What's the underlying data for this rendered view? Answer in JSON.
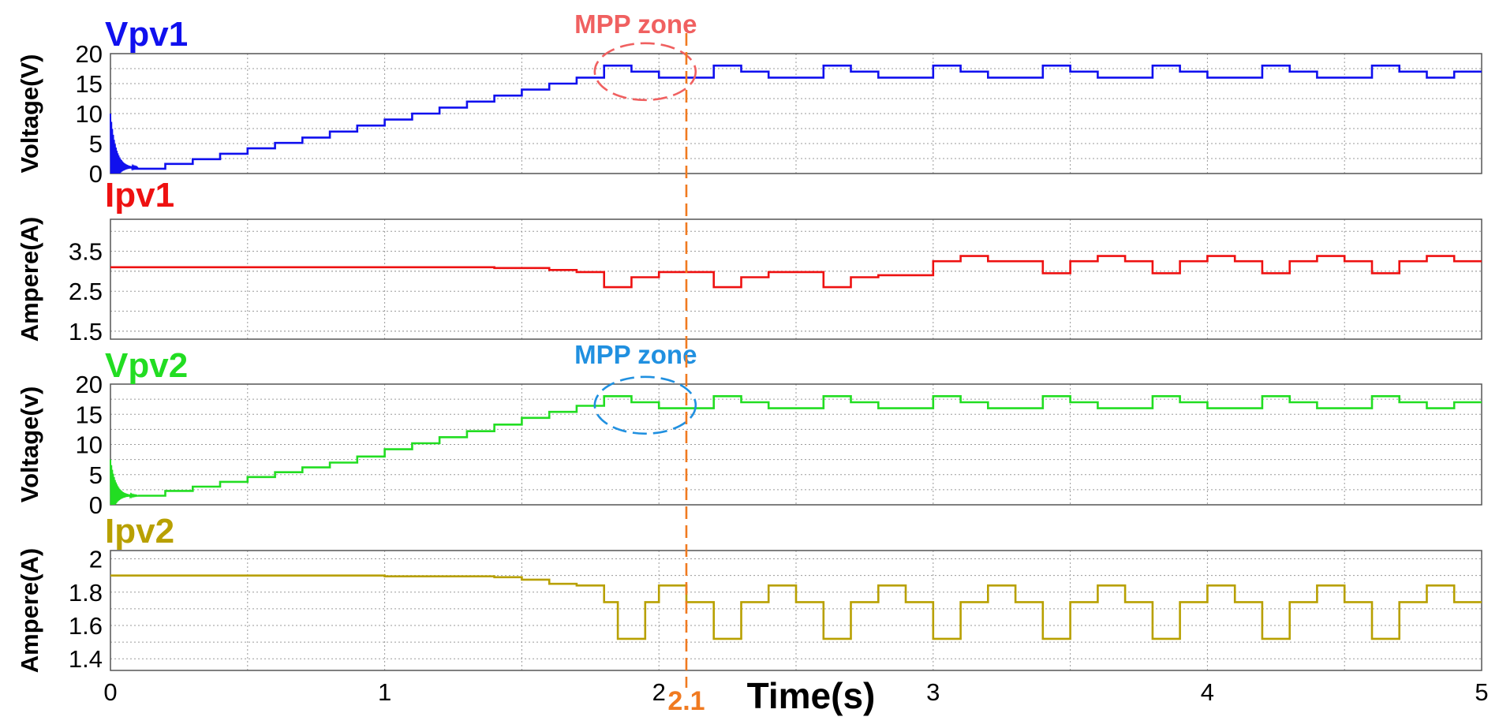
{
  "figure": {
    "x_axis_label": "Time(s)",
    "marker_value_label": "2.1",
    "zone_labels": [
      "MPP zone",
      "MPP zone"
    ],
    "colors": {
      "vpv1": "#1010ee",
      "ipv1": "#ee1111",
      "vpv2": "#22dd22",
      "ipv2": "#b8a000",
      "marker": "#f07a20",
      "zone1": "#f06060",
      "zone2": "#2090e0",
      "grid": "#9a9a9a",
      "axis": "#555555"
    }
  },
  "chart_data": [
    {
      "type": "line",
      "title": "Vpv1",
      "ylabel": "Voltage(V)",
      "xlabel": "",
      "xlim": [
        0,
        5
      ],
      "ylim": [
        0,
        20
      ],
      "yticks": [
        0,
        5,
        10,
        15,
        20
      ],
      "xticks": [
        0,
        1,
        2,
        3,
        4,
        5
      ],
      "grid": true,
      "annotation": {
        "text": "MPP zone",
        "center_x": 1.95,
        "center_y": 17
      },
      "marker_x": 2.1,
      "initial_transient": {
        "from_x": 0,
        "to_x": 0.1,
        "peak": 10,
        "settle": 1
      },
      "series": [
        {
          "name": "Vpv1",
          "steps": [
            [
              0.08,
              0.8
            ],
            [
              0.2,
              1.6
            ],
            [
              0.3,
              2.4
            ],
            [
              0.4,
              3.3
            ],
            [
              0.5,
              4.2
            ],
            [
              0.6,
              5.1
            ],
            [
              0.7,
              6.0
            ],
            [
              0.8,
              7.0
            ],
            [
              0.9,
              8.0
            ],
            [
              1.0,
              9.0
            ],
            [
              1.1,
              10.0
            ],
            [
              1.2,
              11.0
            ],
            [
              1.3,
              12.0
            ],
            [
              1.4,
              13.0
            ],
            [
              1.5,
              14.0
            ],
            [
              1.6,
              15.0
            ],
            [
              1.7,
              16.0
            ],
            [
              1.8,
              18.0
            ],
            [
              1.9,
              17.0
            ],
            [
              2.0,
              16.0
            ],
            [
              2.2,
              18.0
            ],
            [
              2.3,
              17.0
            ],
            [
              2.4,
              16.0
            ],
            [
              2.6,
              18.0
            ],
            [
              2.7,
              17.0
            ],
            [
              2.8,
              16.0
            ],
            [
              3.0,
              18.0
            ],
            [
              3.1,
              17.0
            ],
            [
              3.2,
              16.0
            ],
            [
              3.4,
              18.0
            ],
            [
              3.5,
              17.0
            ],
            [
              3.6,
              16.0
            ],
            [
              3.8,
              18.0
            ],
            [
              3.9,
              17.0
            ],
            [
              4.0,
              16.0
            ],
            [
              4.2,
              18.0
            ],
            [
              4.3,
              17.0
            ],
            [
              4.4,
              16.0
            ],
            [
              4.6,
              18.0
            ],
            [
              4.7,
              17.0
            ],
            [
              4.8,
              16.0
            ],
            [
              4.9,
              17.0
            ]
          ],
          "end_x": 5.0
        }
      ]
    },
    {
      "type": "line",
      "title": "Ipv1",
      "ylabel": "Ampere(A)",
      "xlabel": "",
      "xlim": [
        0,
        5
      ],
      "ylim": [
        1.3,
        4.3
      ],
      "yticks": [
        1.5,
        2.5,
        3.5
      ],
      "xticks": [
        0,
        1,
        2,
        3,
        4,
        5
      ],
      "grid": true,
      "marker_x": 2.1,
      "series": [
        {
          "name": "Ipv1",
          "steps": [
            [
              0,
              3.1
            ],
            [
              1.4,
              3.08
            ],
            [
              1.6,
              3.03
            ],
            [
              1.7,
              2.98
            ],
            [
              1.8,
              2.6
            ],
            [
              1.9,
              2.85
            ],
            [
              2.0,
              2.98
            ],
            [
              2.2,
              2.6
            ],
            [
              2.3,
              2.85
            ],
            [
              2.4,
              2.98
            ],
            [
              2.6,
              2.6
            ],
            [
              2.7,
              2.85
            ],
            [
              2.8,
              2.9
            ],
            [
              3.0,
              3.25
            ],
            [
              3.1,
              3.38
            ],
            [
              3.2,
              3.25
            ],
            [
              3.4,
              2.95
            ],
            [
              3.5,
              3.25
            ],
            [
              3.6,
              3.38
            ],
            [
              3.7,
              3.25
            ],
            [
              3.8,
              2.95
            ],
            [
              3.9,
              3.25
            ],
            [
              4.0,
              3.38
            ],
            [
              4.1,
              3.25
            ],
            [
              4.2,
              2.95
            ],
            [
              4.3,
              3.25
            ],
            [
              4.4,
              3.38
            ],
            [
              4.5,
              3.25
            ],
            [
              4.6,
              2.95
            ],
            [
              4.7,
              3.25
            ],
            [
              4.8,
              3.38
            ],
            [
              4.9,
              3.25
            ]
          ],
          "end_x": 5.0
        }
      ]
    },
    {
      "type": "line",
      "title": "Vpv2",
      "ylabel": "Voltage(v)",
      "xlabel": "",
      "xlim": [
        0,
        5
      ],
      "ylim": [
        0,
        20
      ],
      "yticks": [
        0,
        5,
        10,
        15,
        20
      ],
      "xticks": [
        0,
        1,
        2,
        3,
        4,
        5
      ],
      "grid": true,
      "annotation": {
        "text": "MPP zone",
        "center_x": 1.95,
        "center_y": 16.5
      },
      "marker_x": 2.1,
      "initial_transient": {
        "from_x": 0,
        "to_x": 0.1,
        "peak": 7.5,
        "settle": 1.5
      },
      "series": [
        {
          "name": "Vpv2",
          "steps": [
            [
              0.1,
              1.5
            ],
            [
              0.2,
              2.3
            ],
            [
              0.3,
              3.0
            ],
            [
              0.4,
              3.8
            ],
            [
              0.5,
              4.6
            ],
            [
              0.6,
              5.4
            ],
            [
              0.7,
              6.2
            ],
            [
              0.8,
              7.0
            ],
            [
              0.9,
              8.0
            ],
            [
              1.0,
              9.2
            ],
            [
              1.1,
              10.2
            ],
            [
              1.2,
              11.2
            ],
            [
              1.3,
              12.2
            ],
            [
              1.4,
              13.3
            ],
            [
              1.5,
              14.4
            ],
            [
              1.6,
              15.4
            ],
            [
              1.7,
              16.4
            ],
            [
              1.8,
              18.0
            ],
            [
              1.9,
              17.0
            ],
            [
              2.0,
              16.0
            ],
            [
              2.2,
              18.0
            ],
            [
              2.3,
              17.0
            ],
            [
              2.4,
              16.0
            ],
            [
              2.6,
              18.0
            ],
            [
              2.7,
              17.0
            ],
            [
              2.8,
              16.0
            ],
            [
              3.0,
              18.0
            ],
            [
              3.1,
              17.0
            ],
            [
              3.2,
              16.0
            ],
            [
              3.4,
              18.0
            ],
            [
              3.5,
              17.0
            ],
            [
              3.6,
              16.0
            ],
            [
              3.8,
              18.0
            ],
            [
              3.9,
              17.0
            ],
            [
              4.0,
              16.0
            ],
            [
              4.2,
              18.0
            ],
            [
              4.3,
              17.0
            ],
            [
              4.4,
              16.0
            ],
            [
              4.6,
              18.0
            ],
            [
              4.7,
              17.0
            ],
            [
              4.8,
              16.0
            ],
            [
              4.9,
              17.0
            ]
          ],
          "end_x": 5.0
        }
      ]
    },
    {
      "type": "line",
      "title": "Ipv2",
      "ylabel": "Ampere(A)",
      "xlabel": "Time(s)",
      "xlim": [
        0,
        5
      ],
      "ylim": [
        1.33,
        2.05
      ],
      "yticks": [
        1.4,
        1.6,
        1.8,
        2
      ],
      "xticks": [
        0,
        1,
        2,
        3,
        4,
        5
      ],
      "grid": true,
      "marker_x": 2.1,
      "series": [
        {
          "name": "Ipv2",
          "steps": [
            [
              0,
              1.9
            ],
            [
              1.0,
              1.895
            ],
            [
              1.4,
              1.89
            ],
            [
              1.5,
              1.875
            ],
            [
              1.6,
              1.85
            ],
            [
              1.7,
              1.84
            ],
            [
              1.8,
              1.74
            ],
            [
              1.85,
              1.52
            ],
            [
              1.95,
              1.74
            ],
            [
              2.0,
              1.84
            ],
            [
              2.1,
              1.74
            ],
            [
              2.2,
              1.52
            ],
            [
              2.3,
              1.74
            ],
            [
              2.4,
              1.84
            ],
            [
              2.5,
              1.74
            ],
            [
              2.6,
              1.52
            ],
            [
              2.7,
              1.74
            ],
            [
              2.8,
              1.84
            ],
            [
              2.9,
              1.74
            ],
            [
              3.0,
              1.52
            ],
            [
              3.1,
              1.74
            ],
            [
              3.2,
              1.84
            ],
            [
              3.3,
              1.74
            ],
            [
              3.4,
              1.52
            ],
            [
              3.5,
              1.74
            ],
            [
              3.6,
              1.84
            ],
            [
              3.7,
              1.74
            ],
            [
              3.8,
              1.52
            ],
            [
              3.9,
              1.74
            ],
            [
              4.0,
              1.84
            ],
            [
              4.1,
              1.74
            ],
            [
              4.2,
              1.52
            ],
            [
              4.3,
              1.74
            ],
            [
              4.4,
              1.84
            ],
            [
              4.5,
              1.74
            ],
            [
              4.6,
              1.52
            ],
            [
              4.7,
              1.74
            ],
            [
              4.8,
              1.84
            ],
            [
              4.9,
              1.74
            ]
          ],
          "end_x": 5.0
        }
      ]
    }
  ]
}
